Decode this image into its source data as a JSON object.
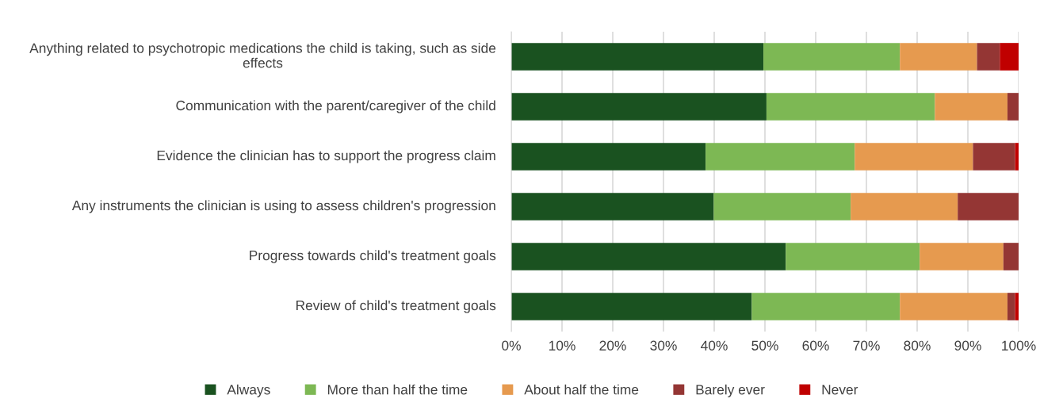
{
  "chart_data": {
    "type": "bar",
    "orientation": "horizontal",
    "stacked": true,
    "categories": [
      "Anything related to psychotropic medications the child is taking, such as side effects",
      "Communication with the parent/caregiver of the child",
      "Evidence the clinician has to support the progress claim",
      "Any instruments the clinician is using to assess children's progression",
      "Progress towards child's treatment goals",
      "Review of child's treatment goals"
    ],
    "series": [
      {
        "name": "Always",
        "color": "#1a5220",
        "values": [
          49.7,
          50.3,
          38.3,
          39.9,
          54.1,
          47.4
        ]
      },
      {
        "name": "More than half the time",
        "color": "#7db854",
        "values": [
          26.9,
          33.2,
          29.4,
          27.0,
          26.4,
          29.2
        ]
      },
      {
        "name": "About half the time",
        "color": "#e69a4f",
        "values": [
          15.2,
          14.3,
          23.3,
          21.1,
          16.5,
          21.2
        ]
      },
      {
        "name": "Barely ever",
        "color": "#943634",
        "values": [
          4.5,
          2.2,
          8.3,
          12.0,
          3.0,
          1.5
        ]
      },
      {
        "name": "Never",
        "color": "#c00000",
        "values": [
          3.7,
          0,
          0.7,
          0,
          0,
          0.7
        ]
      }
    ],
    "xlim": [
      0,
      100
    ],
    "xticks": [
      {
        "value": 0,
        "label": "0%"
      },
      {
        "value": 10,
        "label": "10%"
      },
      {
        "value": 20,
        "label": "20%"
      },
      {
        "value": 30,
        "label": "30%"
      },
      {
        "value": 40,
        "label": "40%"
      },
      {
        "value": 50,
        "label": "50%"
      },
      {
        "value": 60,
        "label": "60%"
      },
      {
        "value": 70,
        "label": "70%"
      },
      {
        "value": 80,
        "label": "80%"
      },
      {
        "value": 90,
        "label": "90%"
      },
      {
        "value": 100,
        "label": "100%"
      }
    ],
    "grid": "x",
    "legend": "bottom"
  }
}
